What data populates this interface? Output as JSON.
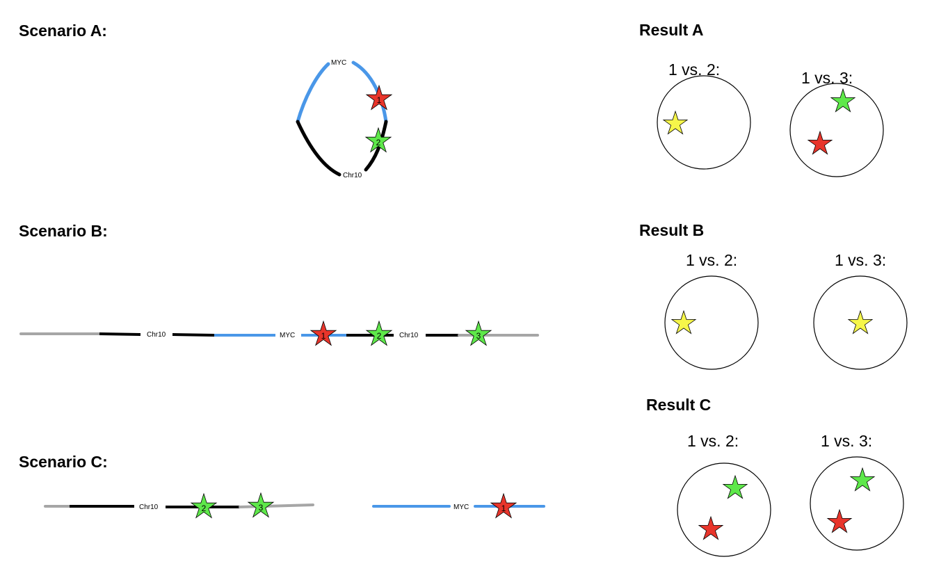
{
  "colors": {
    "myc": "#4a97e8",
    "chr10": "#000000",
    "flank": "#a6a6a6",
    "star_red": "#e8352b",
    "star_green": "#5ee84a",
    "star_yellow": "#f6f64a"
  },
  "scenarios": {
    "a": {
      "title": "Scenario A:",
      "myc_label": "MYC",
      "chr10_label": "Chr10",
      "star1": "1",
      "star2": "2"
    },
    "b": {
      "title": "Scenario B:",
      "chr10_label_left": "Chr10",
      "myc_label": "MYC",
      "chr10_label_right": "Chr10",
      "star1": "1",
      "star2": "2",
      "star3": "3"
    },
    "c": {
      "title": "Scenario C:",
      "chr10_label": "Chr10",
      "myc_label": "MYC",
      "star1": "1",
      "star2": "2",
      "star3": "3"
    }
  },
  "results": {
    "a": {
      "title": "Result A",
      "cmp1": "1 vs. 2:",
      "cmp2": "1 vs. 3:"
    },
    "b": {
      "title": "Result B",
      "cmp1": "1 vs. 2:",
      "cmp2": "1 vs. 3:"
    },
    "c": {
      "title": "Result C",
      "cmp1": "1 vs. 2:",
      "cmp2": "1 vs. 3:"
    }
  }
}
